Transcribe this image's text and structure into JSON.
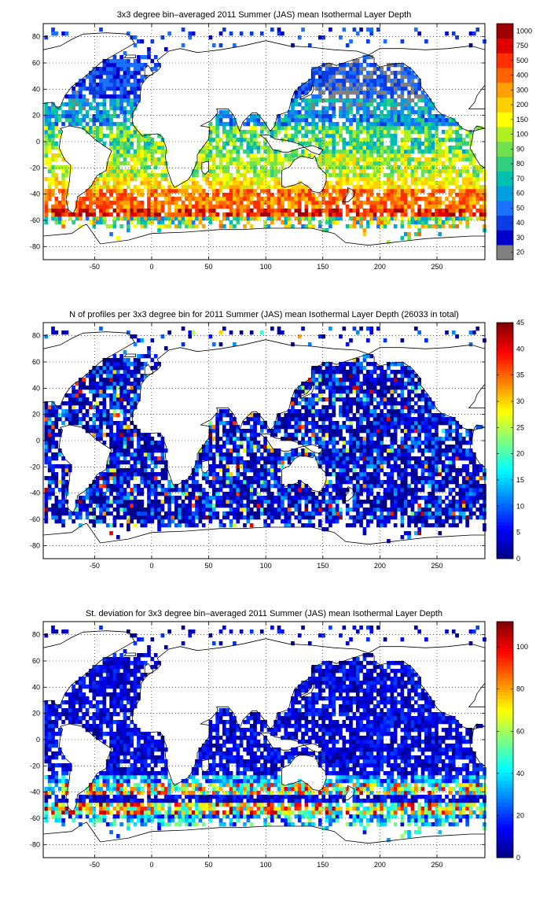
{
  "chart_data": [
    {
      "type": "heatmap",
      "title": "3x3 degree bin–averaged 2011 Summer (JAS) mean Isothermal Layer Depth",
      "xlabel": "",
      "ylabel": "",
      "xlim": [
        -95,
        292
      ],
      "ylim": [
        -90,
        90
      ],
      "xticks": [
        "-50",
        "0",
        "50",
        "100",
        "150",
        "200",
        "250"
      ],
      "yticks": [
        "80",
        "60",
        "40",
        "20",
        "0",
        "-20",
        "-40",
        "-60",
        "-80"
      ],
      "colorbar": {
        "type": "categorical",
        "labels": [
          "20",
          "30",
          "40",
          "50",
          "60",
          "70",
          "80",
          "90",
          "100",
          "150",
          "200",
          "300",
          "400",
          "500",
          "750",
          "1000"
        ],
        "colors": [
          "#808080",
          "#0000cc",
          "#0a3de6",
          "#1a70ff",
          "#00a0e0",
          "#00c0b0",
          "#30d080",
          "#70e050",
          "#b0f020",
          "#ffff00",
          "#ffd000",
          "#ffa000",
          "#ff6400",
          "#ff3000",
          "#e00000",
          "#a00000"
        ]
      },
      "grid": true
    },
    {
      "type": "heatmap",
      "title": "N of profiles per 3x3 degree bin for 2011 Summer (JAS) mean Isothermal Layer Depth  (26033 in total)",
      "xlabel": "",
      "ylabel": "",
      "xlim": [
        -95,
        292
      ],
      "ylim": [
        -90,
        90
      ],
      "xticks": [
        "-50",
        "0",
        "50",
        "100",
        "150",
        "200",
        "250"
      ],
      "yticks": [
        "80",
        "60",
        "40",
        "20",
        "0",
        "-20",
        "-40",
        "-60",
        "-80"
      ],
      "colorbar": {
        "type": "continuous",
        "labels": [
          "0",
          "5",
          "10",
          "15",
          "20",
          "25",
          "30",
          "35",
          "40",
          "45"
        ],
        "min": 0,
        "max": 45
      },
      "grid": true
    },
    {
      "type": "heatmap",
      "title": "St. deviation for 3x3 degree bin–averaged 2011 Summer (JAS) mean Isothermal Layer Depth",
      "xlabel": "",
      "ylabel": "",
      "xlim": [
        -95,
        292
      ],
      "ylim": [
        -90,
        90
      ],
      "xticks": [
        "-50",
        "0",
        "50",
        "100",
        "150",
        "200",
        "250"
      ],
      "yticks": [
        "80",
        "60",
        "40",
        "20",
        "0",
        "-20",
        "-40",
        "-60",
        "-80"
      ],
      "colorbar": {
        "type": "continuous",
        "labels": [
          "0",
          "20",
          "40",
          "60",
          "80",
          "100"
        ],
        "min": 0,
        "max": 112
      },
      "grid": true
    }
  ]
}
